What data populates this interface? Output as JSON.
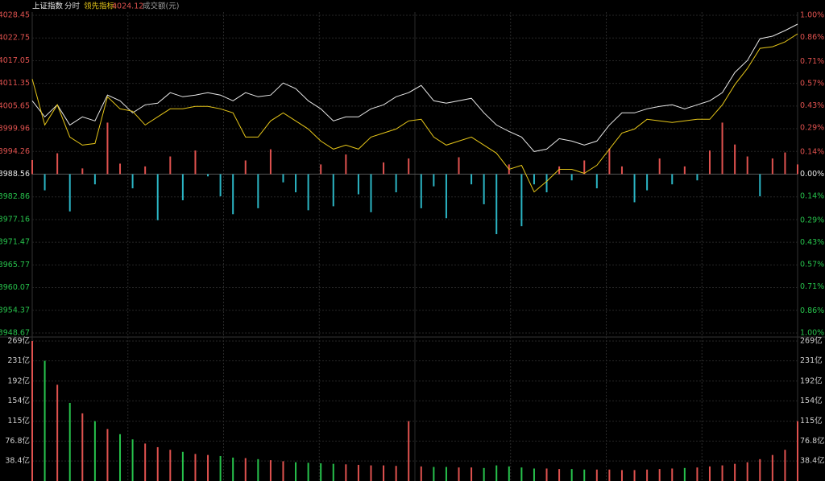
{
  "header": {
    "title": "上证指数",
    "mode": "分时",
    "leading_label": "领先指标:",
    "leading_value": 4024.12,
    "volume_label": "成交额(元)"
  },
  "chart_data": [
    {
      "type": "intraday",
      "name_price": "price",
      "ylim": [
        3948.67,
        4028.45
      ],
      "yticks": [
        4028.45,
        4022.75,
        4017.05,
        4011.35,
        4005.65,
        3999.96,
        3994.26,
        3988.56,
        3982.86,
        3977.16,
        3971.47,
        3965.77,
        3960.07,
        3954.37,
        3948.67
      ],
      "y2lim": [
        -1.0,
        1.0
      ],
      "y2ticks": [
        {
          "value": 1.0,
          "label": "1.00%"
        },
        {
          "value": 0.86,
          "label": "0.86%"
        },
        {
          "value": 0.71,
          "label": "0.71%"
        },
        {
          "value": 0.57,
          "label": "0.57%"
        },
        {
          "value": 0.43,
          "label": "0.43%"
        },
        {
          "value": 0.29,
          "label": "0.29%"
        },
        {
          "value": 0.14,
          "label": "0.14%"
        },
        {
          "value": 0.0,
          "label": "0.00%"
        },
        {
          "value": -0.14,
          "label": "0.14%"
        },
        {
          "value": -0.29,
          "label": "0.29%"
        },
        {
          "value": -0.43,
          "label": "0.43%"
        },
        {
          "value": -0.57,
          "label": "0.57%"
        },
        {
          "value": -0.71,
          "label": "0.71%"
        },
        {
          "value": -0.86,
          "label": "0.86%"
        },
        {
          "value": -1.0,
          "label": "1.00%"
        }
      ],
      "series": [
        {
          "color": "#e8e8e8",
          "values": [
            4006.99,
            4002.94,
            4005.98,
            4000.91,
            4002.94,
            4001.93,
            4008.41,
            4006.99,
            4003.95,
            4005.98,
            4006.38,
            4009.01,
            4008.0,
            4008.41,
            4009.01,
            4008.41,
            4006.99,
            4009.01,
            4008.0,
            4008.41,
            4011.44,
            4010.03,
            4006.99,
            4004.96,
            4001.93,
            4002.94,
            4002.94,
            4004.96,
            4005.98,
            4008.0,
            4009.01,
            4010.84,
            4006.99,
            4006.38,
            4006.99,
            4007.6,
            4003.95,
            4000.91,
            3999.29,
            3997.88,
            3994.23,
            3994.84,
            3997.47,
            3996.86,
            3995.85,
            3996.86,
            4000.91,
            4003.95,
            4003.95,
            4004.96,
            4005.57,
            4005.98,
            4004.96,
            4005.98,
            4006.99,
            4009.01,
            4014.08,
            4017.11,
            4022.58,
            4023.19,
            4024.61,
            4026.23
          ]
        },
        {
          "color": "#e6c619",
          "values": [
            4012.46,
            4000.91,
            4005.98,
            3997.88,
            3995.85,
            3996.26,
            4008.0,
            4004.96,
            4004.36,
            4000.91,
            4002.94,
            4004.96,
            4004.96,
            4005.57,
            4005.57,
            4004.96,
            4003.95,
            3997.88,
            3997.88,
            4001.93,
            4003.95,
            4001.93,
            3999.9,
            3996.86,
            3994.84,
            3995.85,
            3994.84,
            3997.88,
            3998.89,
            3999.9,
            4001.93,
            4002.33,
            3997.88,
            3995.85,
            3996.86,
            3997.88,
            3995.85,
            3993.83,
            3989.78,
            3990.79,
            3984.1,
            3986.74,
            3989.78,
            3989.78,
            3988.76,
            3990.79,
            3994.84,
            3998.89,
            3999.9,
            4002.33,
            4001.93,
            4001.52,
            4001.93,
            4002.33,
            4002.33,
            4005.98,
            4011.04,
            4015.09,
            4020.15,
            4020.56,
            4021.77,
            4023.8
          ]
        }
      ],
      "bars": [
        3992.1,
        3984.5,
        3993.8,
        3979.2,
        3990.0,
        3986.0,
        4001.5,
        3991.2,
        3985.0,
        3990.5,
        3977.0,
        3993.0,
        3982.0,
        3994.5,
        3988.0,
        3983.0,
        3978.5,
        3992.0,
        3980.0,
        3994.8,
        3986.5,
        3984.0,
        3979.5,
        3991.0,
        3980.5,
        3993.5,
        3983.5,
        3979.0,
        3991.5,
        3984.0,
        3992.5,
        3980.0,
        3985.5,
        3977.5,
        3992.8,
        3986.0,
        3981.0,
        3973.5,
        3991.0,
        3975.5,
        3986.0,
        3984.0,
        3990.5,
        3987.0,
        3992.0,
        3985.0,
        3995.0,
        3990.5,
        3981.5,
        3984.5,
        3992.5,
        3986.0,
        3990.5,
        3987.0,
        3994.5,
        4001.5,
        3996.0,
        3993.0,
        3983.0,
        3992.5,
        3994.0,
        3991.0
      ],
      "up_color": "#e0524f",
      "down_color": "#2bb5c4"
    },
    {
      "type": "volume",
      "ylim": [
        0,
        269
      ],
      "yticks": [
        {
          "value": 269,
          "label": "269亿"
        },
        {
          "value": 231,
          "label": "231亿"
        },
        {
          "value": 192,
          "label": "192亿"
        },
        {
          "value": 154,
          "label": "154亿"
        },
        {
          "value": 115,
          "label": "115亿"
        },
        {
          "value": 76.8,
          "label": "76.8亿"
        },
        {
          "value": 38.4,
          "label": "38.4亿"
        }
      ],
      "values": [
        269,
        231,
        185,
        150,
        130,
        115,
        100,
        90,
        80,
        72,
        65,
        60,
        56,
        52,
        50,
        48,
        45,
        44,
        42,
        40,
        38,
        36,
        35,
        34,
        33,
        32,
        31,
        30,
        30,
        29,
        115,
        28,
        27,
        27,
        26,
        26,
        25,
        30,
        28,
        26,
        24,
        24,
        23,
        23,
        22,
        22,
        22,
        21,
        21,
        22,
        23,
        24,
        25,
        26,
        28,
        30,
        33,
        36,
        42,
        50,
        60,
        115
      ],
      "up_color": "#e0524f",
      "down_color": "#27c24c"
    }
  ]
}
